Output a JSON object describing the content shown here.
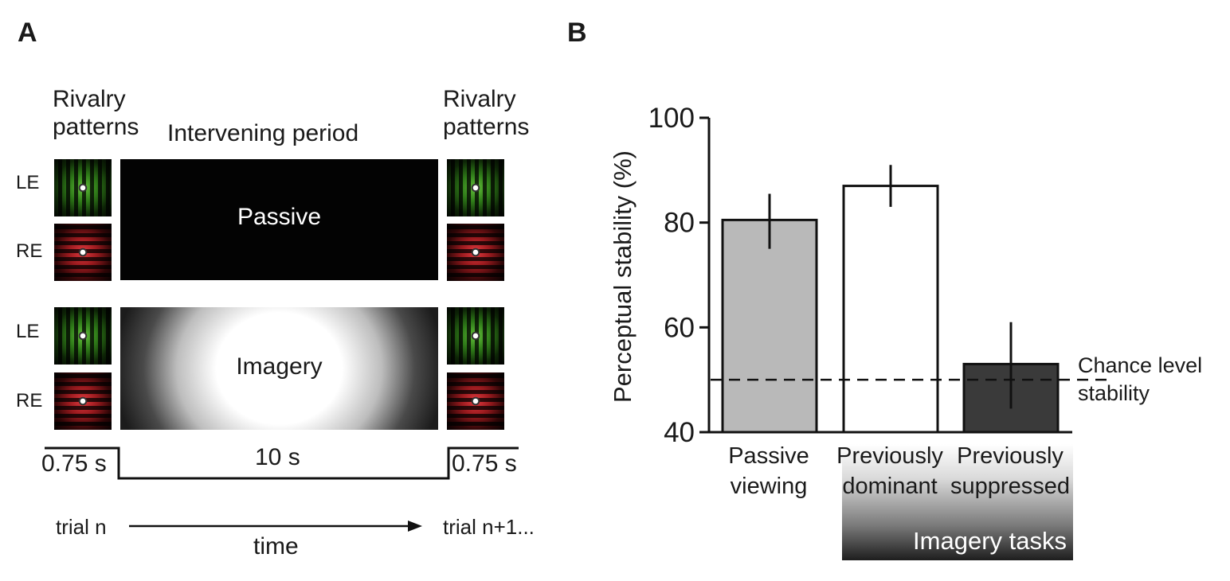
{
  "panel_a": {
    "letter": "A",
    "header_left_1": "Rivalry",
    "header_left_2": "patterns",
    "header_mid": "Intervening period",
    "header_right_1": "Rivalry",
    "header_right_2": "patterns",
    "eye_le": "LE",
    "eye_re": "RE",
    "passive_label": "Passive",
    "imagery_label": "Imagery",
    "dur_left": "0.75 s",
    "dur_mid": "10 s",
    "dur_right": "0.75 s",
    "trial_start": "trial n",
    "trial_end": "trial n+1...",
    "time_label": "time"
  },
  "panel_b": {
    "letter": "B",
    "chance_line_1": "Chance level",
    "chance_line_2": "stability",
    "group_label": "Imagery tasks"
  },
  "chart_data": {
    "type": "bar",
    "categories": [
      "Passive viewing",
      "Previously dominant",
      "Previously suppressed"
    ],
    "category_lines": [
      [
        "Passive",
        "viewing"
      ],
      [
        "Previously",
        "dominant"
      ],
      [
        "Previously",
        "suppressed"
      ]
    ],
    "values": [
      80.5,
      87.0,
      53.0
    ],
    "error": [
      [
        75.0,
        85.5
      ],
      [
        83.0,
        91.0
      ],
      [
        44.5,
        61.0
      ]
    ],
    "colors": [
      "#b9b9b9",
      "#ffffff",
      "#3a3a3a"
    ],
    "ylabel": "Perceptual stability (%)",
    "ylim": [
      40,
      100
    ],
    "yticks": [
      40,
      60,
      80,
      100
    ],
    "chance_level": 50
  }
}
